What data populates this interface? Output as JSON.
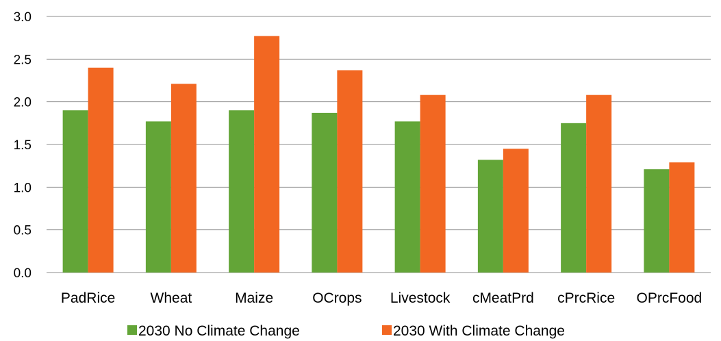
{
  "chart_data": {
    "type": "bar",
    "title": "",
    "xlabel": "",
    "ylabel": "",
    "ylim": [
      0,
      3.0
    ],
    "yticks": [
      "0.0",
      "0.5",
      "1.0",
      "1.5",
      "2.0",
      "2.5",
      "3.0"
    ],
    "grid": true,
    "legend_position": "bottom",
    "categories": [
      "PadRice",
      "Wheat",
      "Maize",
      "OCrops",
      "Livestock",
      "cMeatPrd",
      "cPrcRice",
      "OPrcFood"
    ],
    "series": [
      {
        "name": "2030 No Climate Change",
        "color": "#63a537",
        "values": [
          1.9,
          1.77,
          1.9,
          1.87,
          1.77,
          1.32,
          1.75,
          1.21
        ]
      },
      {
        "name": "2030 With Climate Change",
        "color": "#f26722",
        "values": [
          2.4,
          2.21,
          2.77,
          2.37,
          2.08,
          1.45,
          2.08,
          1.29
        ]
      }
    ]
  }
}
